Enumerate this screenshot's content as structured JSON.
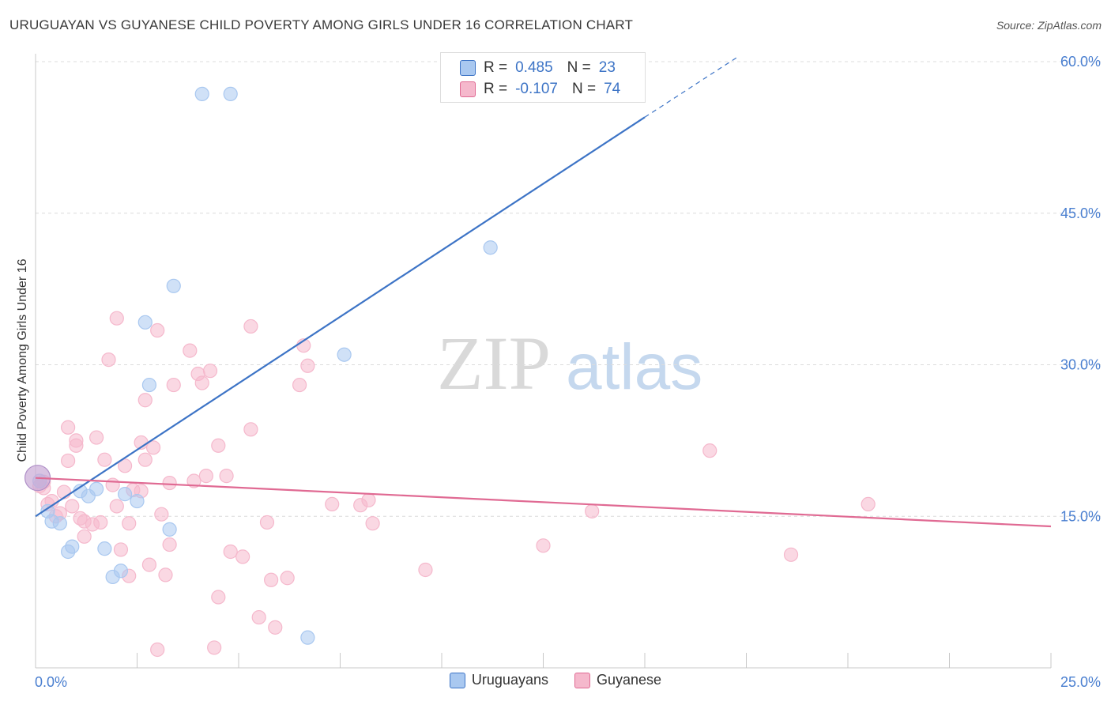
{
  "header": {
    "title": "URUGUAYAN VS GUYANESE CHILD POVERTY AMONG GIRLS UNDER 16 CORRELATION CHART",
    "source": "Source: ZipAtlas.com"
  },
  "watermark": {
    "zip": "ZIP",
    "atlas": "atlas"
  },
  "legend_top": {
    "rows": [
      {
        "r_label": "R =",
        "r_value": "0.485",
        "n_label": "N =",
        "n_value": "23",
        "color": "#a9c8f0"
      },
      {
        "r_label": "R =",
        "r_value": "-0.107",
        "n_label": "N =",
        "n_value": "74",
        "color": "#f5b8cc"
      }
    ]
  },
  "legend_bottom": {
    "items": [
      {
        "label": "Uruguayans",
        "color": "#a9c8f0"
      },
      {
        "label": "Guyanese",
        "color": "#f5b8cc"
      }
    ]
  },
  "chart_data": {
    "type": "scatter",
    "title": "URUGUAYAN VS GUYANESE CHILD POVERTY AMONG GIRLS UNDER 16 CORRELATION CHART",
    "xlabel": "",
    "ylabel": "Child Poverty Among Girls Under 16",
    "xlim": [
      0,
      25
    ],
    "ylim": [
      0,
      60
    ],
    "x_tick_labels": [
      "0.0%",
      "25.0%"
    ],
    "y_ticks": [
      15,
      30,
      45,
      60
    ],
    "y_tick_labels": [
      "15.0%",
      "30.0%",
      "45.0%",
      "60.0%"
    ],
    "grid": true,
    "accent_colors": {
      "blue": "#3d74c6",
      "pink": "#e06a93",
      "tick_label": "#4a7fd0"
    },
    "series": [
      {
        "name": "Uruguayans",
        "color": "#a9c8f0",
        "line_color": "#3d74c6",
        "trend": {
          "x0": 0.0,
          "y0": 15.0,
          "x1": 15.0,
          "y1": 54.5,
          "dash_to_x": 17.3,
          "dash_to_y": 60.5
        },
        "points": [
          [
            0.1,
            18.5
          ],
          [
            0.3,
            15.5
          ],
          [
            0.4,
            14.5
          ],
          [
            0.6,
            14.3
          ],
          [
            0.8,
            11.5
          ],
          [
            0.9,
            12.0
          ],
          [
            1.1,
            17.5
          ],
          [
            1.3,
            17.0
          ],
          [
            1.5,
            17.7
          ],
          [
            1.7,
            11.8
          ],
          [
            1.9,
            9.0
          ],
          [
            2.1,
            9.6
          ],
          [
            2.2,
            17.2
          ],
          [
            2.5,
            16.5
          ],
          [
            2.7,
            34.2
          ],
          [
            2.8,
            28.0
          ],
          [
            3.3,
            13.7
          ],
          [
            3.4,
            37.8
          ],
          [
            4.1,
            56.8
          ],
          [
            4.8,
            56.8
          ],
          [
            6.7,
            3.0
          ],
          [
            7.6,
            31.0
          ],
          [
            11.2,
            41.6
          ]
        ]
      },
      {
        "name": "Guyanese",
        "color": "#f5b8cc",
        "line_color": "#e06a93",
        "trend": {
          "x0": 0.0,
          "y0": 18.8,
          "x1": 25.0,
          "y1": 14.0
        },
        "points": [
          [
            0.1,
            18.0
          ],
          [
            0.2,
            17.8
          ],
          [
            0.3,
            16.2
          ],
          [
            0.4,
            16.5
          ],
          [
            0.5,
            15.0
          ],
          [
            0.6,
            15.3
          ],
          [
            0.7,
            17.4
          ],
          [
            0.8,
            20.5
          ],
          [
            0.8,
            23.8
          ],
          [
            1.0,
            22.0
          ],
          [
            1.0,
            22.5
          ],
          [
            1.2,
            14.5
          ],
          [
            1.2,
            13.0
          ],
          [
            1.4,
            14.2
          ],
          [
            1.5,
            22.8
          ],
          [
            1.6,
            14.4
          ],
          [
            1.7,
            20.6
          ],
          [
            1.8,
            30.5
          ],
          [
            1.9,
            18.1
          ],
          [
            2.0,
            16.0
          ],
          [
            2.0,
            34.6
          ],
          [
            2.1,
            11.7
          ],
          [
            2.2,
            20.0
          ],
          [
            2.3,
            9.1
          ],
          [
            2.3,
            14.3
          ],
          [
            2.4,
            17.6
          ],
          [
            2.6,
            17.5
          ],
          [
            2.6,
            22.3
          ],
          [
            2.7,
            26.5
          ],
          [
            2.7,
            20.6
          ],
          [
            2.8,
            10.2
          ],
          [
            2.9,
            21.8
          ],
          [
            3.0,
            33.4
          ],
          [
            3.0,
            1.8
          ],
          [
            3.1,
            15.2
          ],
          [
            3.2,
            9.2
          ],
          [
            3.3,
            12.2
          ],
          [
            3.3,
            18.3
          ],
          [
            3.4,
            28.0
          ],
          [
            3.8,
            31.4
          ],
          [
            3.9,
            18.5
          ],
          [
            4.0,
            29.1
          ],
          [
            4.1,
            28.2
          ],
          [
            4.2,
            19.0
          ],
          [
            4.3,
            29.4
          ],
          [
            4.4,
            2.0
          ],
          [
            4.5,
            7.0
          ],
          [
            4.5,
            22.0
          ],
          [
            4.7,
            19.0
          ],
          [
            4.8,
            11.5
          ],
          [
            5.1,
            11.0
          ],
          [
            5.3,
            23.6
          ],
          [
            5.3,
            33.8
          ],
          [
            5.5,
            5.0
          ],
          [
            5.7,
            14.4
          ],
          [
            5.8,
            8.7
          ],
          [
            5.9,
            4.0
          ],
          [
            6.2,
            8.9
          ],
          [
            6.5,
            28.0
          ],
          [
            6.6,
            31.9
          ],
          [
            6.7,
            29.9
          ],
          [
            7.3,
            16.2
          ],
          [
            8.0,
            16.1
          ],
          [
            8.2,
            16.6
          ],
          [
            8.3,
            14.3
          ],
          [
            9.6,
            9.7
          ],
          [
            12.5,
            12.1
          ],
          [
            13.7,
            15.5
          ],
          [
            16.6,
            21.5
          ],
          [
            18.6,
            11.2
          ],
          [
            20.5,
            16.2
          ],
          [
            0.2,
            18.4
          ],
          [
            0.9,
            16.0
          ],
          [
            1.1,
            14.8
          ]
        ]
      }
    ],
    "big_points": [
      {
        "series": "Uruguayans",
        "x": 0.05,
        "y": 18.8
      }
    ]
  }
}
